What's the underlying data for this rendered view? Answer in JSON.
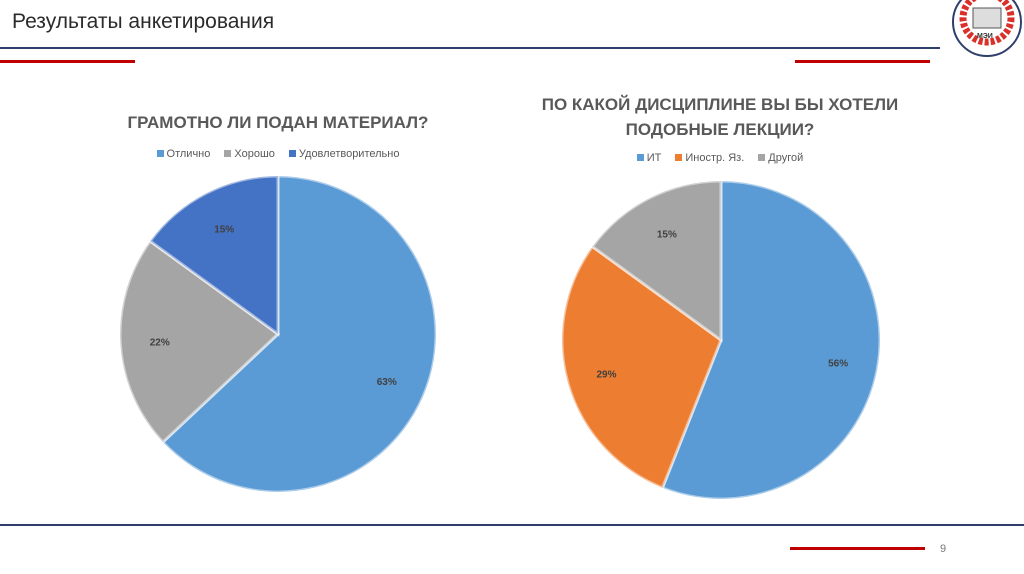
{
  "header": {
    "title": "Результаты анкетирования",
    "logo_text": "МЭИ"
  },
  "page_number": "9",
  "chart_data": [
    {
      "type": "pie",
      "title": "ГРАМОТНО ЛИ ПОДАН МАТЕРИАЛ?",
      "categories": [
        "Отлично",
        "Хорошо",
        "Удовлетворительно"
      ],
      "values": [
        63,
        22,
        15
      ],
      "labels": [
        "63%",
        "22%",
        "15%"
      ],
      "colors": [
        "#5B9BD5",
        "#A5A5A5",
        "#4472C4"
      ]
    },
    {
      "type": "pie",
      "title": "ПО КАКОЙ ДИСЦИПЛИНЕ ВЫ БЫ ХОТЕЛИ ПОДОБНЫЕ ЛЕКЦИИ?",
      "categories": [
        "ИТ",
        "Иностр. Яз.",
        "Другой"
      ],
      "values": [
        56,
        29,
        15
      ],
      "labels": [
        "56%",
        "29%",
        "15%"
      ],
      "colors": [
        "#5B9BD5",
        "#ED7D31",
        "#A5A5A5"
      ]
    }
  ]
}
